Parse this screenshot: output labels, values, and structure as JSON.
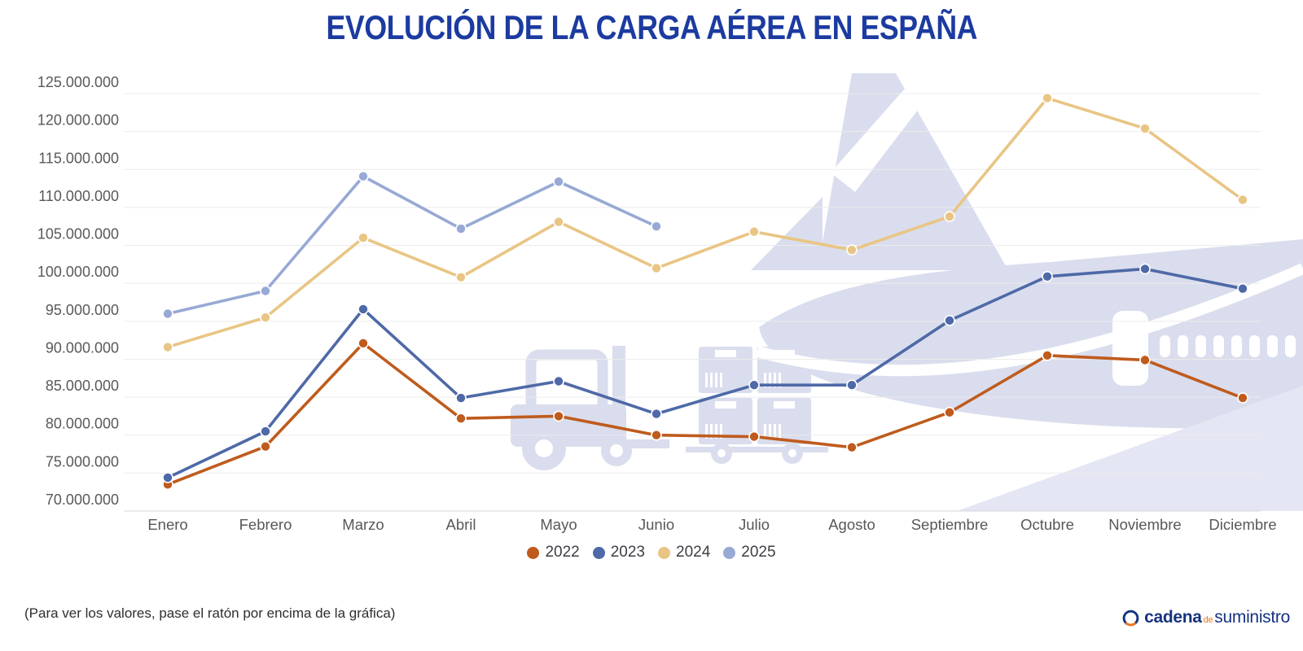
{
  "title": "EVOLUCIÓN DE LA CARGA AÉREA EN ESPAÑA",
  "footer": {
    "hint": "(Para ver los valores, pase el ratón por encima de la gráfica)",
    "logo": {
      "part1": "cadena",
      "part2": "de",
      "part3": "suministro"
    }
  },
  "colors": {
    "title": "#1c3ba0",
    "grid": "#ececec",
    "axis_line": "#d7d7d7",
    "axis_text": "#58595b",
    "watermark": "#dadded",
    "watermark_light": "#e4e6f4",
    "logo_blue": "#16337f",
    "logo_orange": "#e87722"
  },
  "chart_data": {
    "type": "line",
    "title": "EVOLUCIÓN DE LA CARGA AÉREA EN ESPAÑA",
    "x": [
      "Enero",
      "Febrero",
      "Marzo",
      "Abril",
      "Mayo",
      "Junio",
      "Julio",
      "Agosto",
      "Septiembre",
      "Octubre",
      "Noviembre",
      "Diciembre"
    ],
    "series": [
      {
        "name": "2022",
        "color": "#bf5b1d",
        "values": [
          73500000,
          78500000,
          92100000,
          82200000,
          82500000,
          80000000,
          79800000,
          78400000,
          83000000,
          90500000,
          89900000,
          84900000
        ]
      },
      {
        "name": "2023",
        "color": "#4e69a7",
        "values": [
          74400000,
          80500000,
          96600000,
          84900000,
          87100000,
          82800000,
          86600000,
          86600000,
          95100000,
          100900000,
          101900000,
          99300000
        ]
      },
      {
        "name": "2024",
        "color": "#e9c584",
        "values": [
          91600000,
          95500000,
          106000000,
          100800000,
          108100000,
          102000000,
          106800000,
          104400000,
          108800000,
          124400000,
          120400000,
          111000000
        ]
      },
      {
        "name": "2025",
        "color": "#97a9d4",
        "values": [
          96000000,
          99000000,
          114100000,
          107200000,
          113400000,
          107500000,
          null,
          null,
          null,
          null,
          null,
          null
        ]
      }
    ],
    "ylim": [
      70000000,
      125000000
    ],
    "ytick_step": 5000000,
    "ytick_labels": [
      "70.000.000",
      "75.000.000",
      "80.000.000",
      "85.000.000",
      "90.000.000",
      "95.000.000",
      "100.000.000",
      "105.000.000",
      "110.000.000",
      "115.000.000",
      "120.000.000",
      "125.000.000"
    ],
    "grid": "horizontal",
    "legend_position": "bottom",
    "legend_labels": [
      "2022",
      "2023",
      "2024",
      "2025"
    ]
  }
}
